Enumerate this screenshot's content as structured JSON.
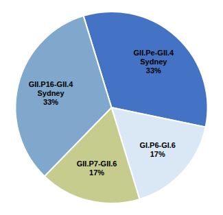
{
  "chart_data": {
    "type": "pie",
    "categories": [
      "GII.Pe-GII.4\nSydney",
      "GI.P6-GI.6",
      "GII.P7-GII.6",
      "GII.P16-GII.4\nSydney"
    ],
    "values": [
      33,
      17,
      17,
      33
    ],
    "value_labels": [
      "33%",
      "17%",
      "17%",
      "33%"
    ],
    "data_labels": true,
    "colors": [
      "#4472C4",
      "#DAE8F5",
      "#C5CC8E",
      "#7FA8CC"
    ]
  }
}
